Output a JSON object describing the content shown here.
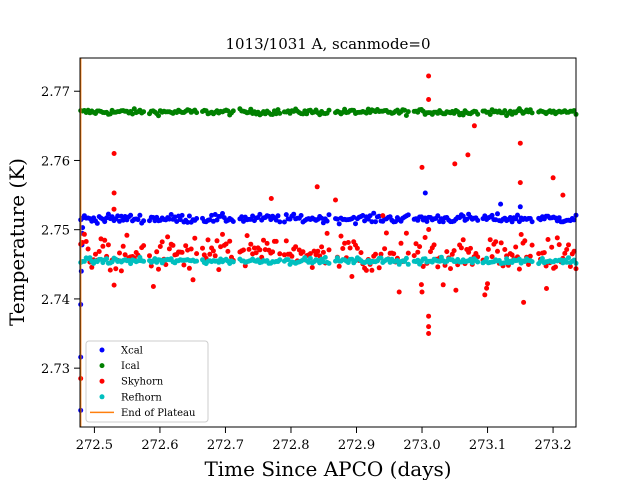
{
  "chart_data": {
    "type": "scatter",
    "title": "1013/1031 A, scanmode=0",
    "xlabel": "Time Since APCO (days)",
    "ylabel": "Temperature (K)",
    "xlim": [
      272.478,
      273.235
    ],
    "ylim": [
      2.7215,
      2.7748
    ],
    "xticks": [
      272.5,
      272.6,
      272.7,
      272.8,
      272.9,
      273.0,
      273.1,
      273.2
    ],
    "xtick_labels": [
      "272.5",
      "272.6",
      "272.7",
      "272.8",
      "272.9",
      "273.0",
      "273.1",
      "273.2"
    ],
    "yticks": [
      2.73,
      2.74,
      2.75,
      2.76,
      2.77
    ],
    "ytick_labels": [
      "2.73",
      "2.74",
      "2.75",
      "2.76",
      "2.77"
    ],
    "legend_position": "lower-left",
    "plateau_segments": [
      [
        272.479,
        272.575
      ],
      [
        272.584,
        272.656
      ],
      [
        272.665,
        272.712
      ],
      [
        272.722,
        272.783
      ],
      [
        272.79,
        272.858
      ],
      [
        272.868,
        272.979
      ],
      [
        272.988,
        273.085
      ],
      [
        273.093,
        273.168
      ],
      [
        273.178,
        273.235
      ]
    ],
    "series": [
      {
        "name": "Xcal",
        "color": "#0000ff",
        "level": 2.7516,
        "spread": 0.0003,
        "extra_points": [
          [
            272.479,
            2.7239
          ],
          [
            272.479,
            2.7316
          ],
          [
            272.479,
            2.7392
          ],
          [
            272.48,
            2.744
          ],
          [
            272.481,
            2.7478
          ],
          [
            272.481,
            2.7495
          ],
          [
            272.482,
            2.7503
          ],
          [
            273.005,
            2.7553
          ],
          [
            273.12,
            2.7537
          ],
          [
            273.15,
            2.7533
          ]
        ]
      },
      {
        "name": "Ical",
        "color": "#008000",
        "level": 2.767,
        "spread": 0.0002,
        "extra_points": []
      },
      {
        "name": "Skyhorn",
        "color": "#ff0000",
        "level": 2.7465,
        "spread": 0.0012,
        "extra_points": [
          [
            272.479,
            2.7285
          ],
          [
            272.53,
            2.761
          ],
          [
            272.53,
            2.7553
          ],
          [
            273.0,
            2.759
          ],
          [
            273.01,
            2.7722
          ],
          [
            273.01,
            2.7688
          ],
          [
            273.01,
            2.7375
          ],
          [
            273.01,
            2.736
          ],
          [
            273.01,
            2.735
          ],
          [
            273.08,
            2.765
          ],
          [
            273.07,
            2.7608
          ],
          [
            273.05,
            2.7595
          ],
          [
            273.15,
            2.7625
          ],
          [
            273.15,
            2.7568
          ],
          [
            273.2,
            2.7575
          ],
          [
            273.215,
            2.755
          ],
          [
            273.0,
            2.741
          ],
          [
            273.1,
            2.7422
          ],
          [
            273.155,
            2.7395
          ],
          [
            273.19,
            2.7415
          ],
          [
            272.84,
            2.7562
          ],
          [
            272.77,
            2.7545
          ],
          [
            272.53,
            2.742
          ],
          [
            272.59,
            2.7418
          ]
        ]
      },
      {
        "name": "Refhorn",
        "color": "#00bfbf",
        "level": 2.7455,
        "spread": 0.0002,
        "extra_points": []
      },
      {
        "name": "End of Plateau",
        "color": "#ff7f0e",
        "x": 272.479
      }
    ]
  }
}
